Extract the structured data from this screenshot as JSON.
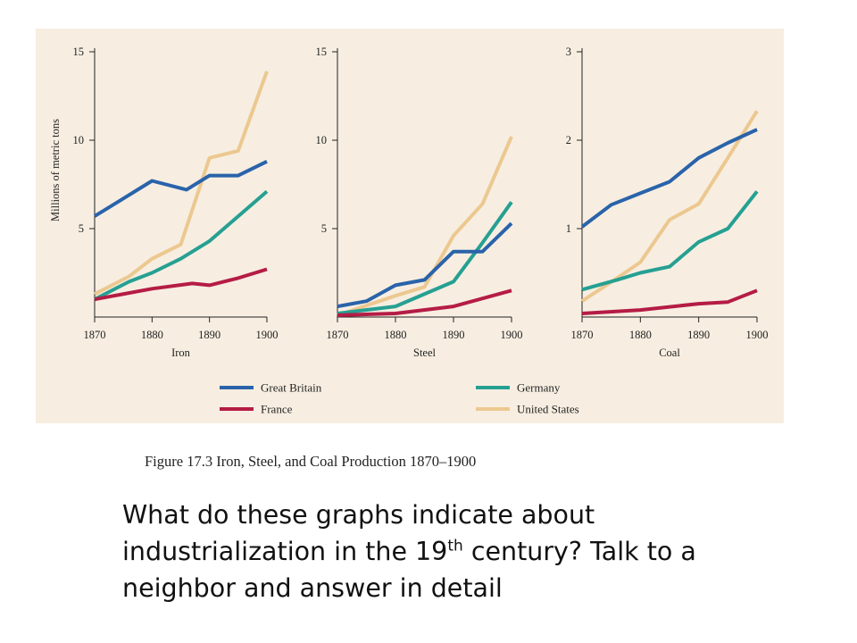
{
  "figure": {
    "caption": "Figure 17.3  Iron, Steel, and Coal Production 1870–1900",
    "background_color": "#f7eee1"
  },
  "question": {
    "part1": "What do these graphs indicate about industrialization in the 19",
    "superscript": "th",
    "part2": " century? Talk to a neighbor and answer in detail"
  },
  "chart_data": [
    {
      "type": "line",
      "title": "Iron",
      "xlabel": "Iron",
      "ylabel": "Millions of metric tons",
      "xlim": [
        1870,
        1900
      ],
      "ylim": [
        0,
        15
      ],
      "xticks": [
        1870,
        1880,
        1890,
        1900
      ],
      "yticks": [
        5,
        10,
        15
      ],
      "series": [
        {
          "name": "Great Britain",
          "color": "#2a63aa",
          "x": [
            1870,
            1880,
            1886,
            1890,
            1895,
            1900
          ],
          "y": [
            5.7,
            7.7,
            7.2,
            8.0,
            8.0,
            8.8
          ]
        },
        {
          "name": "Germany",
          "color": "#26a092",
          "x": [
            1870,
            1876,
            1880,
            1885,
            1890,
            1900
          ],
          "y": [
            1.0,
            2.0,
            2.5,
            3.3,
            4.3,
            7.1
          ]
        },
        {
          "name": "France",
          "color": "#b51c45",
          "x": [
            1870,
            1880,
            1887,
            1890,
            1895,
            1900
          ],
          "y": [
            1.0,
            1.6,
            1.9,
            1.8,
            2.2,
            2.7
          ]
        },
        {
          "name": "United States",
          "color": "#ecc890",
          "x": [
            1870,
            1876,
            1880,
            1885,
            1890,
            1895,
            1900
          ],
          "y": [
            1.3,
            2.3,
            3.3,
            4.1,
            9.0,
            9.4,
            13.9
          ]
        }
      ]
    },
    {
      "type": "line",
      "title": "Steel",
      "xlabel": "Steel",
      "ylabel": "",
      "xlim": [
        1870,
        1900
      ],
      "ylim": [
        0,
        15
      ],
      "xticks": [
        1870,
        1880,
        1890,
        1900
      ],
      "yticks": [
        5,
        10,
        15
      ],
      "series": [
        {
          "name": "Great Britain",
          "color": "#2a63aa",
          "x": [
            1870,
            1875,
            1880,
            1885,
            1890,
            1895,
            1900
          ],
          "y": [
            0.6,
            0.9,
            1.8,
            2.1,
            3.7,
            3.7,
            5.3
          ]
        },
        {
          "name": "Germany",
          "color": "#26a092",
          "x": [
            1870,
            1880,
            1890,
            1895,
            1900
          ],
          "y": [
            0.2,
            0.6,
            2.0,
            4.2,
            6.5
          ]
        },
        {
          "name": "France",
          "color": "#b51c45",
          "x": [
            1870,
            1880,
            1890,
            1900
          ],
          "y": [
            0.1,
            0.2,
            0.6,
            1.5
          ]
        },
        {
          "name": "United States",
          "color": "#ecc890",
          "x": [
            1870,
            1880,
            1885,
            1890,
            1895,
            1900
          ],
          "y": [
            0.1,
            1.2,
            1.7,
            4.6,
            6.4,
            10.2
          ]
        }
      ]
    },
    {
      "type": "line",
      "title": "Coal",
      "xlabel": "Coal",
      "ylabel": "",
      "xlim": [
        1870,
        1900
      ],
      "ylim": [
        0,
        3
      ],
      "xticks": [
        1870,
        1880,
        1890,
        1900
      ],
      "yticks": [
        1,
        2,
        3
      ],
      "series": [
        {
          "name": "Great Britain",
          "color": "#2a63aa",
          "x": [
            1870,
            1875,
            1880,
            1885,
            1890,
            1895,
            1900
          ],
          "y": [
            1.02,
            1.27,
            1.4,
            1.53,
            1.8,
            1.97,
            2.12
          ]
        },
        {
          "name": "Germany",
          "color": "#26a092",
          "x": [
            1870,
            1876,
            1880,
            1885,
            1890,
            1895,
            1900
          ],
          "y": [
            0.31,
            0.42,
            0.5,
            0.57,
            0.85,
            1.0,
            1.42
          ]
        },
        {
          "name": "France",
          "color": "#b51c45",
          "x": [
            1870,
            1880,
            1890,
            1895,
            1900
          ],
          "y": [
            0.04,
            0.08,
            0.15,
            0.17,
            0.3
          ]
        },
        {
          "name": "United States",
          "color": "#ecc890",
          "x": [
            1870,
            1876,
            1880,
            1885,
            1890,
            1895,
            1900
          ],
          "y": [
            0.18,
            0.44,
            0.62,
            1.1,
            1.28,
            1.8,
            2.33
          ]
        }
      ]
    }
  ],
  "legend": {
    "placement": "bottom",
    "items": [
      {
        "label": "Great Britain",
        "color": "#2a63aa"
      },
      {
        "label": "Germany",
        "color": "#26a092"
      },
      {
        "label": "France",
        "color": "#b51c45"
      },
      {
        "label": "United States",
        "color": "#ecc890"
      }
    ]
  }
}
